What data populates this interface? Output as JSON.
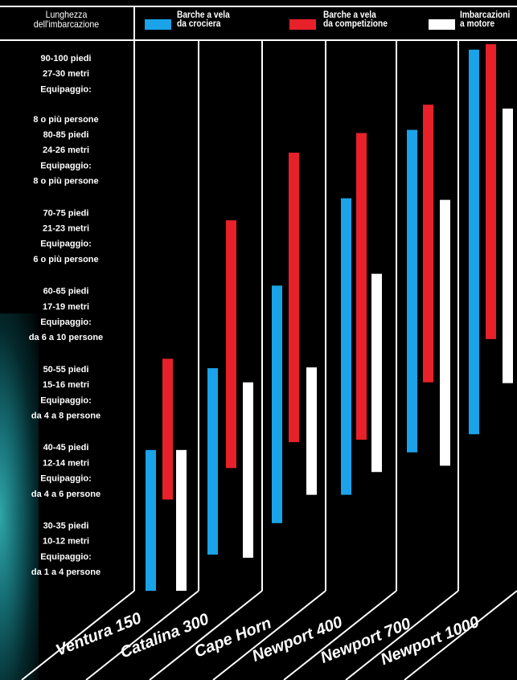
{
  "chart_data": {
    "type": "range-bar",
    "y_axis_label": "Lunghezza\ndell'imbarcazione",
    "y_categories": [
      [
        "90-100 piedi",
        "27-30 metri",
        "Equipaggio:",
        "8 o più persone"
      ],
      [
        "80-85 piedi",
        "24-26 metri",
        "Equipaggio:",
        "8 o più persone"
      ],
      [
        "70-75 piedi",
        "21-23 metri",
        "Equipaggio:",
        "6 o più persone"
      ],
      [
        "60-65 piedi",
        "17-19 metri",
        "Equipaggio:",
        "da 6 a 10 persone"
      ],
      [
        "50-55 piedi",
        "15-16 metri",
        "Equipaggio:",
        "da 4 a 8 persone"
      ],
      [
        "40-45 piedi",
        "12-14 metri",
        "Equipaggio:",
        "da 4 a 6 persone"
      ],
      [
        "30-35 piedi",
        "10-12 metri",
        "Equipaggio:",
        "da 1 a 4 persone"
      ]
    ],
    "categories": [
      "Ventura 150",
      "Catalina 300",
      "Cape Horn",
      "Newport 400",
      "Newport 700",
      "Newport 1000"
    ],
    "ylim": [
      0,
      7
    ],
    "series": [
      {
        "name": "Barche a vela\nda crociera",
        "color": "#1aa3e8",
        "values": [
          [
            0,
            1.79
          ],
          [
            0.46,
            2.83
          ],
          [
            0.86,
            3.88
          ],
          [
            1.22,
            4.99
          ],
          [
            1.76,
            5.86
          ],
          [
            1.99,
            6.88
          ]
        ]
      },
      {
        "name": "Barche a vela\nda competizione",
        "color": "#e8202a",
        "values": [
          [
            1.16,
            2.95
          ],
          [
            1.56,
            4.71
          ],
          [
            1.89,
            5.57
          ],
          [
            1.92,
            5.82
          ],
          [
            2.65,
            6.18
          ],
          [
            3.2,
            6.95
          ]
        ]
      },
      {
        "name": "Imbarcazioni\na motore",
        "color": "#ffffff",
        "values": [
          [
            0,
            1.79
          ],
          [
            0.42,
            2.65
          ],
          [
            1.22,
            2.84
          ],
          [
            1.51,
            4.03
          ],
          [
            1.59,
            4.97
          ],
          [
            2.64,
            6.13
          ]
        ]
      }
    ]
  }
}
